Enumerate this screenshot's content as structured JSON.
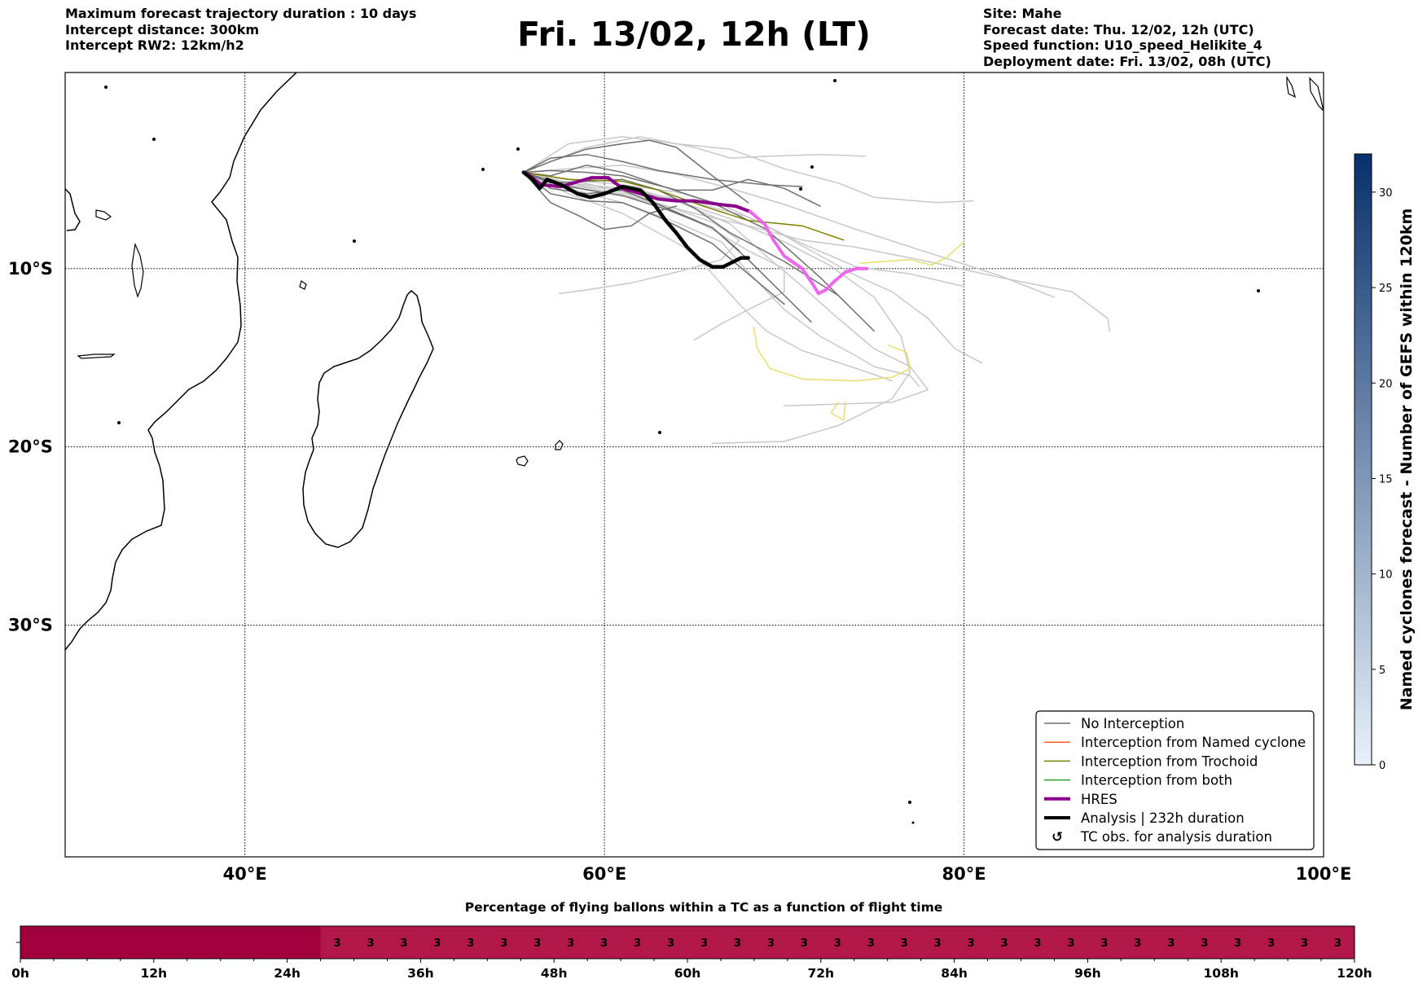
{
  "header_left": [
    "Maximum forecast trajectory duration : 10 days",
    "Intercept distance: 300km",
    "Intercept RW2: 12km/h2"
  ],
  "title": "Fri. 13/02, 12h (LT)",
  "header_right": [
    "Site: Mahe",
    "Forecast date: Thu. 12/02, 12h (UTC)",
    "Speed function: U10_speed_Helikite_4",
    "Deployment date: Fri. 13/02, 08h (UTC)"
  ],
  "map": {
    "lon_range": [
      30,
      100
    ],
    "lat_range": [
      1,
      -43
    ],
    "lon_ticks": [
      {
        "v": 40,
        "label": "40°E"
      },
      {
        "v": 60,
        "label": "60°E"
      },
      {
        "v": 80,
        "label": "80°E"
      },
      {
        "v": 100,
        "label": "100°E"
      }
    ],
    "lat_ticks": [
      {
        "v": -10,
        "label": "10°S"
      },
      {
        "v": -20,
        "label": "20°S"
      },
      {
        "v": -30,
        "label": "30°S"
      }
    ],
    "gridlines": "dotted",
    "launch_site": [
      55.5,
      -4.6
    ],
    "colors": {
      "coast": "#000000",
      "no_interception": "#6f6f6f",
      "no_interception_light": "#c8c8c8",
      "named_cyclone": "#ff5a1f",
      "trochoid": "#808000",
      "trochoid_light": "#e6e06e",
      "both": "#2ca02c",
      "hres_land": "#8b008b",
      "hres_sea": "#ee66ee",
      "analysis": "#000000"
    },
    "hres_track": [
      [
        55.6,
        -4.6
      ],
      [
        56.5,
        -5.3
      ],
      [
        57.6,
        -5.4
      ],
      [
        58.6,
        -5.1
      ],
      [
        59.3,
        -4.9
      ],
      [
        60.2,
        -4.9
      ],
      [
        61.0,
        -5.5
      ],
      [
        62.0,
        -5.8
      ],
      [
        63.0,
        -6.1
      ],
      [
        64.0,
        -6.2
      ],
      [
        65.0,
        -6.2
      ],
      [
        66.4,
        -6.4
      ],
      [
        67.3,
        -6.5
      ],
      [
        68.1,
        -6.8
      ],
      [
        68.9,
        -7.5
      ],
      [
        69.4,
        -8.4
      ],
      [
        70.0,
        -9.3
      ],
      [
        71.0,
        -10.0
      ],
      [
        71.6,
        -10.9
      ],
      [
        71.9,
        -11.4
      ],
      [
        72.3,
        -11.2
      ],
      [
        72.8,
        -10.7
      ],
      [
        73.4,
        -10.2
      ],
      [
        74.0,
        -10.0
      ],
      [
        74.6,
        -10.0
      ]
    ],
    "analysis_track": [
      [
        55.5,
        -4.6
      ],
      [
        56.0,
        -5.0
      ],
      [
        56.4,
        -5.5
      ],
      [
        56.8,
        -5.0
      ],
      [
        57.6,
        -5.3
      ],
      [
        58.5,
        -5.8
      ],
      [
        59.2,
        -6.0
      ],
      [
        60.0,
        -5.8
      ],
      [
        61.0,
        -5.4
      ],
      [
        62.0,
        -5.6
      ],
      [
        62.7,
        -6.3
      ],
      [
        63.4,
        -7.3
      ],
      [
        64.0,
        -8.0
      ],
      [
        64.6,
        -8.8
      ],
      [
        65.3,
        -9.5
      ],
      [
        66.0,
        -9.9
      ],
      [
        66.6,
        -9.9
      ],
      [
        67.2,
        -9.6
      ],
      [
        67.6,
        -9.4
      ],
      [
        68.0,
        -9.4
      ]
    ],
    "ensemble_dark": [
      [
        [
          55.5,
          -4.6
        ],
        [
          57,
          -5.5
        ],
        [
          59,
          -5.8
        ],
        [
          61,
          -5.6
        ],
        [
          63,
          -6.4
        ],
        [
          66,
          -7.7
        ],
        [
          68,
          -9.5
        ],
        [
          70,
          -11.5
        ],
        [
          71.5,
          -13
        ]
      ],
      [
        [
          55.5,
          -4.6
        ],
        [
          57,
          -4.8
        ],
        [
          59,
          -4.2
        ],
        [
          61,
          -4.6
        ],
        [
          63,
          -5.3
        ],
        [
          66,
          -6.3
        ],
        [
          69,
          -7.8
        ],
        [
          72,
          -10.5
        ],
        [
          75,
          -13.5
        ]
      ],
      [
        [
          55.5,
          -4.6
        ],
        [
          57,
          -5.8
        ],
        [
          59,
          -6.2
        ],
        [
          61,
          -6.3
        ],
        [
          63,
          -7.1
        ],
        [
          66,
          -8.6
        ],
        [
          68,
          -10.3
        ],
        [
          70,
          -12
        ]
      ],
      [
        [
          55.5,
          -4.6
        ],
        [
          57,
          -4.0
        ],
        [
          59,
          -3.3
        ],
        [
          61,
          -3.0
        ],
        [
          62.5,
          -2.8
        ],
        [
          64,
          -3.2
        ],
        [
          66,
          -4.8
        ],
        [
          68,
          -6.3
        ]
      ],
      [
        [
          55.5,
          -4.6
        ],
        [
          57,
          -5.2
        ],
        [
          59,
          -5.1
        ],
        [
          61,
          -5.0
        ],
        [
          63,
          -5.6
        ],
        [
          65,
          -6.6
        ],
        [
          67,
          -8.0
        ],
        [
          70,
          -9.6
        ],
        [
          73,
          -11.5
        ]
      ],
      [
        [
          55.5,
          -4.6
        ],
        [
          57,
          -6.3
        ],
        [
          58.5,
          -7.0
        ],
        [
          60,
          -7.8
        ],
        [
          61.5,
          -7.6
        ],
        [
          62.5,
          -6.9
        ],
        [
          64,
          -6.5
        ]
      ],
      [
        [
          55.5,
          -4.6
        ],
        [
          57,
          -4.5
        ],
        [
          59,
          -4.6
        ],
        [
          61,
          -4.8
        ],
        [
          64,
          -5.6
        ],
        [
          66,
          -5.6
        ],
        [
          68,
          -5.0
        ],
        [
          70,
          -5.5
        ],
        [
          72,
          -6.5
        ]
      ],
      [
        [
          55.5,
          -4.6
        ],
        [
          58,
          -5.4
        ],
        [
          61,
          -5.9
        ],
        [
          63.5,
          -6.7
        ],
        [
          66,
          -7.7
        ],
        [
          67.5,
          -9.0
        ]
      ],
      [
        [
          55.5,
          -4.6
        ],
        [
          57,
          -3.8
        ],
        [
          59,
          -3.6
        ],
        [
          61,
          -4.0
        ],
        [
          63,
          -4.5
        ],
        [
          66,
          -5.0
        ],
        [
          69,
          -5.3
        ],
        [
          71,
          -5.4
        ]
      ]
    ],
    "ensemble_light": [
      [
        [
          55.5,
          -4.6
        ],
        [
          59,
          -3.2
        ],
        [
          62,
          -2.6
        ],
        [
          65,
          -3.2
        ],
        [
          67,
          -3.8
        ],
        [
          69,
          -3.7
        ],
        [
          72,
          -3.6
        ],
        [
          74.5,
          -3.7
        ]
      ],
      [
        [
          55.5,
          -4.6
        ],
        [
          58,
          -3.0
        ],
        [
          61,
          -2.6
        ],
        [
          64,
          -3.0
        ],
        [
          67,
          -3.3
        ],
        [
          70,
          -4.4
        ],
        [
          73,
          -5.2
        ],
        [
          75,
          -6.0
        ],
        [
          78.5,
          -6.3
        ],
        [
          80.5,
          -6.2
        ]
      ],
      [
        [
          55.5,
          -4.6
        ],
        [
          59,
          -5.4
        ],
        [
          62,
          -5.7
        ],
        [
          65,
          -6.3
        ],
        [
          68,
          -7.1
        ],
        [
          71,
          -8.6
        ],
        [
          74,
          -9.9
        ],
        [
          77,
          -10.3
        ],
        [
          80,
          -11.0
        ]
      ],
      [
        [
          55.5,
          -4.6
        ],
        [
          58,
          -4.4
        ],
        [
          61,
          -4.2
        ],
        [
          64,
          -4.7
        ],
        [
          67,
          -5.5
        ],
        [
          70,
          -6.4
        ],
        [
          74,
          -7.8
        ],
        [
          78,
          -9.1
        ],
        [
          82,
          -10.4
        ],
        [
          85,
          -11.6
        ]
      ],
      [
        [
          55.5,
          -4.6
        ],
        [
          59,
          -5.6
        ],
        [
          62,
          -6.1
        ],
        [
          65,
          -6.9
        ],
        [
          68,
          -7.6
        ],
        [
          71,
          -8.4
        ],
        [
          74,
          -8.8
        ],
        [
          78,
          -9.6
        ],
        [
          82,
          -10.5
        ],
        [
          86,
          -11.3
        ],
        [
          88,
          -12.8
        ],
        [
          88.1,
          -13.5
        ]
      ],
      [
        [
          55.5,
          -4.6
        ],
        [
          58,
          -5.0
        ],
        [
          61,
          -5.3
        ],
        [
          64,
          -6.2
        ],
        [
          67,
          -7.5
        ],
        [
          69,
          -9.3
        ],
        [
          71,
          -11.0
        ],
        [
          73,
          -12.8
        ],
        [
          75,
          -14.5
        ],
        [
          77,
          -15.5
        ],
        [
          78,
          -16.8
        ],
        [
          76,
          -17.5
        ],
        [
          73,
          -17.6
        ],
        [
          70,
          -17.7
        ]
      ],
      [
        [
          55.5,
          -4.6
        ],
        [
          58,
          -5.5
        ],
        [
          61,
          -6.3
        ],
        [
          64,
          -7.4
        ],
        [
          66.5,
          -8.5
        ],
        [
          68,
          -10.2
        ],
        [
          70,
          -12.3
        ],
        [
          72,
          -13.8
        ],
        [
          74,
          -14.9
        ],
        [
          75,
          -15.5
        ],
        [
          77,
          -16.0
        ],
        [
          77.5,
          -16.6
        ]
      ],
      [
        [
          55.5,
          -4.6
        ],
        [
          58,
          -5.0
        ],
        [
          61,
          -5.3
        ],
        [
          64,
          -5.7
        ],
        [
          66.5,
          -6.4
        ],
        [
          69,
          -7.6
        ],
        [
          71.5,
          -9.0
        ],
        [
          74,
          -10.4
        ],
        [
          76,
          -11.3
        ],
        [
          78,
          -12.8
        ],
        [
          79.5,
          -14.5
        ],
        [
          81,
          -15.3
        ]
      ],
      [
        [
          55.5,
          -4.6
        ],
        [
          58,
          -5.8
        ],
        [
          61,
          -6.9
        ],
        [
          63,
          -8.0
        ],
        [
          64.8,
          -9.0
        ],
        [
          66,
          -10.3
        ],
        [
          67.5,
          -12.0
        ],
        [
          69,
          -13.5
        ],
        [
          71,
          -14.6
        ],
        [
          74,
          -15.6
        ],
        [
          76,
          -16.3
        ]
      ],
      [
        [
          55.5,
          -4.6
        ],
        [
          58,
          -5.2
        ],
        [
          61,
          -5.5
        ],
        [
          64,
          -6.2
        ],
        [
          67,
          -7.2
        ],
        [
          70,
          -8.5
        ],
        [
          72.5,
          -9.8
        ],
        [
          75,
          -11.6
        ],
        [
          76.5,
          -13.8
        ],
        [
          77,
          -15.8
        ],
        [
          76,
          -17.3
        ],
        [
          73,
          -18.8
        ],
        [
          70,
          -19.7
        ],
        [
          66,
          -19.8
        ]
      ],
      [
        [
          55.5,
          -4.6
        ],
        [
          58,
          -5.0
        ],
        [
          61,
          -5.7
        ],
        [
          63.5,
          -6.5
        ],
        [
          66,
          -7.4
        ],
        [
          67.5,
          -8.4
        ],
        [
          66.5,
          -9.5
        ],
        [
          64,
          -10.2
        ],
        [
          61.5,
          -10.8
        ],
        [
          59,
          -11.2
        ],
        [
          57.5,
          -11.4
        ]
      ],
      [
        [
          55.5,
          -4.6
        ],
        [
          58,
          -5.3
        ],
        [
          61,
          -5.8
        ],
        [
          63.5,
          -6.6
        ],
        [
          66,
          -7.8
        ],
        [
          68,
          -9.0
        ],
        [
          70,
          -10.0
        ],
        [
          70,
          -11.3
        ],
        [
          68,
          -12.3
        ],
        [
          66.5,
          -13.1
        ],
        [
          65,
          -14.0
        ]
      ]
    ],
    "trochoid_dark": [
      [
        [
          55.5,
          -4.6
        ],
        [
          58,
          -5.0
        ],
        [
          61,
          -5.1
        ],
        [
          63,
          -5.6
        ],
        [
          65.5,
          -6.5
        ],
        [
          68,
          -7.3
        ],
        [
          71,
          -7.6
        ],
        [
          73.3,
          -8.4
        ]
      ]
    ],
    "trochoid_light": [
      [
        [
          74.2,
          -9.7
        ],
        [
          75.5,
          -9.6
        ],
        [
          77,
          -9.5
        ],
        [
          78.2,
          -9.8
        ],
        [
          79,
          -9.4
        ],
        [
          80,
          -8.5
        ]
      ],
      [
        [
          68.3,
          -13.3
        ],
        [
          68.5,
          -14.5
        ],
        [
          69.2,
          -15.6
        ],
        [
          71,
          -16.2
        ],
        [
          74,
          -16.3
        ],
        [
          76,
          -16.1
        ],
        [
          77,
          -15.6
        ],
        [
          76.8,
          -14.7
        ],
        [
          75.8,
          -14.3
        ]
      ],
      [
        [
          73.0,
          -17.5
        ],
        [
          72.6,
          -18.1
        ],
        [
          73.3,
          -18.5
        ],
        [
          73.4,
          -17.5
        ]
      ]
    ],
    "legend": [
      {
        "label": "No Interception",
        "style": "no"
      },
      {
        "label": "Interception from Named cyclone",
        "style": "named"
      },
      {
        "label": "Interception from Trochoid",
        "style": "trochoid"
      },
      {
        "label": "Interception from both",
        "style": "both"
      },
      {
        "label": "HRES",
        "style": "hres"
      },
      {
        "label": "Analysis | 232h duration",
        "style": "analysis"
      },
      {
        "label": "TC obs. for analysis duration",
        "style": "tcobs"
      }
    ],
    "tcobs_symbol": "↺",
    "colorbar": {
      "label": "Named cyclones forecast - Number of GEFS within 120km",
      "min": 0,
      "max": 32,
      "ticks": [
        0,
        5,
        10,
        15,
        20,
        25,
        30
      ],
      "color_low": "#e8f1fa",
      "color_high": "#08306b"
    }
  },
  "flight_bar": {
    "title": "Percentage of flying ballons within a TC as a function of flight time",
    "hours_max": 120,
    "cell_hours": 3,
    "empty_cells": 9,
    "cell_value": "3",
    "color_empty": "#a0003c",
    "color_filled": "#b2174a",
    "ticks": [
      {
        "v": 0,
        "label": "0h"
      },
      {
        "v": 12,
        "label": "12h"
      },
      {
        "v": 24,
        "label": "24h"
      },
      {
        "v": 36,
        "label": "36h"
      },
      {
        "v": 48,
        "label": "48h"
      },
      {
        "v": 60,
        "label": "60h"
      },
      {
        "v": 72,
        "label": "72h"
      },
      {
        "v": 84,
        "label": "84h"
      },
      {
        "v": 96,
        "label": "96h"
      },
      {
        "v": 108,
        "label": "108h"
      },
      {
        "v": 120,
        "label": "120h"
      }
    ]
  }
}
